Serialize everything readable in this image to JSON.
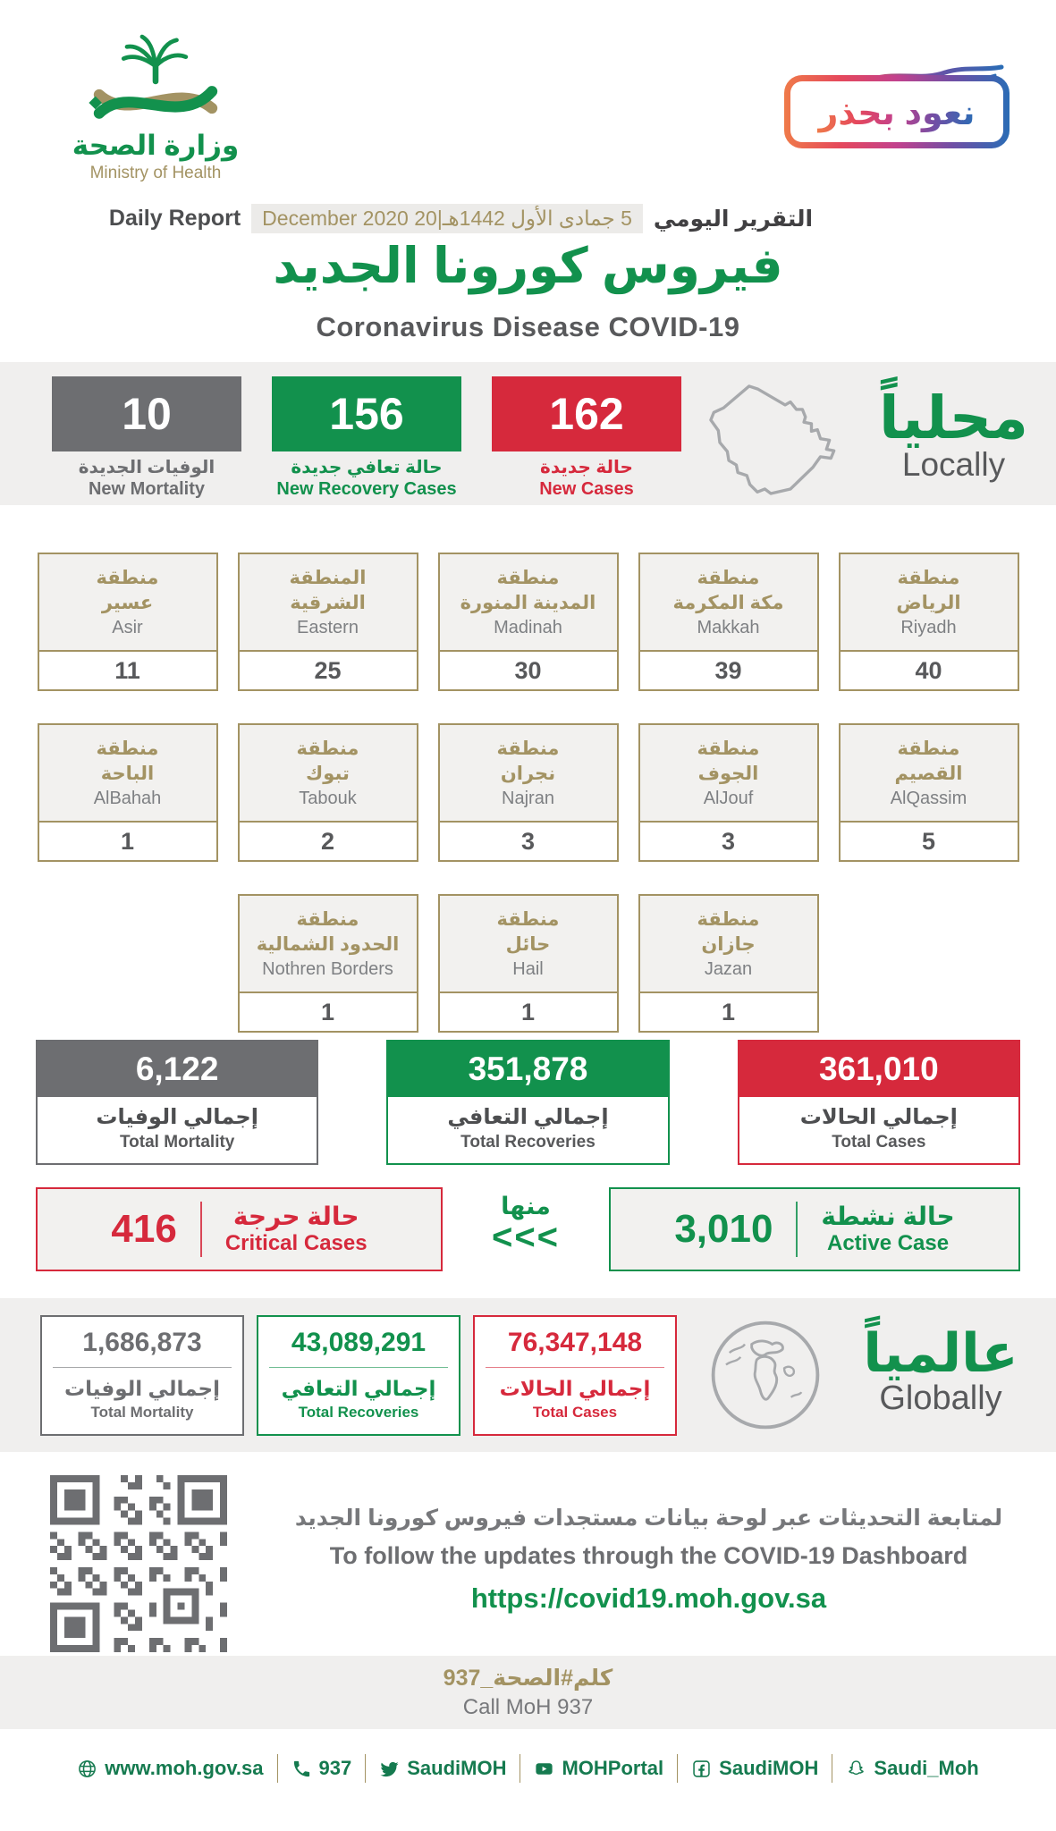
{
  "brand": {
    "ministry_ar": "وزارة الصحة",
    "ministry_en": "Ministry of Health",
    "badge_text": "نعود بحذر"
  },
  "report": {
    "label_en": "Daily Report",
    "label_ar": "التقرير اليومي",
    "date": "5 جمادى الأول 1442هـ|20 December 2020",
    "title_ar": "فيروس كورونا الجديد",
    "title_en": "Coronavirus Disease COVID-19"
  },
  "locally": {
    "title_ar": "محلياً",
    "title_en": "Locally",
    "stats": [
      {
        "value": "10",
        "label_ar": "الوفيات الجديدة",
        "label_en": "New Mortality",
        "color": "#6d6e71"
      },
      {
        "value": "156",
        "label_ar": "حالة تعافي جديدة",
        "label_en": "New Recovery Cases",
        "color": "#12914d"
      },
      {
        "value": "162",
        "label_ar": "حالة جديدة",
        "label_en": "New Cases",
        "color": "#d6293c"
      }
    ]
  },
  "regions": {
    "rows": [
      [
        {
          "name_ar_1": "منطقة",
          "name_ar_2": "عسير",
          "name_en": "Asir",
          "value": "11"
        },
        {
          "name_ar_1": "المنطقة",
          "name_ar_2": "الشرقية",
          "name_en": "Eastern",
          "value": "25"
        },
        {
          "name_ar_1": "منطقة",
          "name_ar_2": "المدينة المنورة",
          "name_en": "Madinah",
          "value": "30"
        },
        {
          "name_ar_1": "منطقة",
          "name_ar_2": "مكة المكرمة",
          "name_en": "Makkah",
          "value": "39"
        },
        {
          "name_ar_1": "منطقة",
          "name_ar_2": "الرياض",
          "name_en": "Riyadh",
          "value": "40"
        }
      ],
      [
        {
          "name_ar_1": "منطقة",
          "name_ar_2": "الباحة",
          "name_en": "AlBahah",
          "value": "1"
        },
        {
          "name_ar_1": "منطقة",
          "name_ar_2": "تبوك",
          "name_en": "Tabouk",
          "value": "2"
        },
        {
          "name_ar_1": "منطقة",
          "name_ar_2": "نجران",
          "name_en": "Najran",
          "value": "3"
        },
        {
          "name_ar_1": "منطقة",
          "name_ar_2": "الجوف",
          "name_en": "AlJouf",
          "value": "3"
        },
        {
          "name_ar_1": "منطقة",
          "name_ar_2": "القصيم",
          "name_en": "AlQassim",
          "value": "5"
        }
      ],
      [
        {
          "name_ar_1": "منطقة",
          "name_ar_2": "الحدود الشمالية",
          "name_en": "Nothren Borders",
          "value": "1"
        },
        {
          "name_ar_1": "منطقة",
          "name_ar_2": "حائل",
          "name_en": "Hail",
          "value": "1"
        },
        {
          "name_ar_1": "منطقة",
          "name_ar_2": "جازان",
          "name_en": "Jazan",
          "value": "1"
        }
      ]
    ]
  },
  "totals": [
    {
      "value": "6,122",
      "label_ar": "إجمالي الوفيات",
      "label_en": "Total Mortality",
      "color": "#6d6e71"
    },
    {
      "value": "351,878",
      "label_ar": "إجمالي التعافي",
      "label_en": "Total Recoveries",
      "color": "#12914d"
    },
    {
      "value": "361,010",
      "label_ar": "إجمالي الحالات",
      "label_en": "Total Cases",
      "color": "#d6293c"
    }
  ],
  "breakdown": {
    "critical": {
      "value": "416",
      "label_ar": "حالة حرجة",
      "label_en": "Critical Cases"
    },
    "of_which_ar": "منها",
    "arrows": "<<<",
    "active": {
      "value": "3,010",
      "label_ar": "حالة نشطة",
      "label_en": "Active Case"
    }
  },
  "globally": {
    "title_ar": "عالمياً",
    "title_en": "Globally",
    "stats": [
      {
        "value": "1,686,873",
        "label_ar": "إجمالي الوفيات",
        "label_en": "Total Mortality",
        "color": "#6d6e71"
      },
      {
        "value": "43,089,291",
        "label_ar": "إجمالي التعافي",
        "label_en": "Total Recoveries",
        "color": "#12914d"
      },
      {
        "value": "76,347,148",
        "label_ar": "إجمالي الحالات",
        "label_en": "Total Cases",
        "color": "#d6293c"
      }
    ]
  },
  "dashboard": {
    "note_ar": "لمتابعة التحديثات عبر لوحة بيانات مستجدات فيروس كورونا الجديد",
    "note_en": "To follow the updates through the COVID-19 Dashboard",
    "url": "https://covid19.moh.gov.sa"
  },
  "call_center": {
    "hashtag_ar": "كلم#الصحة_937",
    "label_en": "Call MoH 937"
  },
  "footer": {
    "items": [
      {
        "icon": "globe-icon",
        "label": "www.moh.gov.sa"
      },
      {
        "icon": "phone-icon",
        "label": "937"
      },
      {
        "icon": "twitter-icon",
        "label": "SaudiMOH"
      },
      {
        "icon": "youtube-icon",
        "label": "MOHPortal"
      },
      {
        "icon": "facebook-icon",
        "label": "SaudiMOH"
      },
      {
        "icon": "snapchat-icon",
        "label": "Saudi_Moh"
      }
    ]
  },
  "colors": {
    "green": "#12914d",
    "red": "#d6293c",
    "gray": "#6d6e71",
    "gold": "#a39363",
    "band_bg": "#f0efee",
    "badge_gradient": [
      "#ef7a49",
      "#e5485c",
      "#c2418d",
      "#6f4fa5",
      "#2a6cb5"
    ]
  }
}
